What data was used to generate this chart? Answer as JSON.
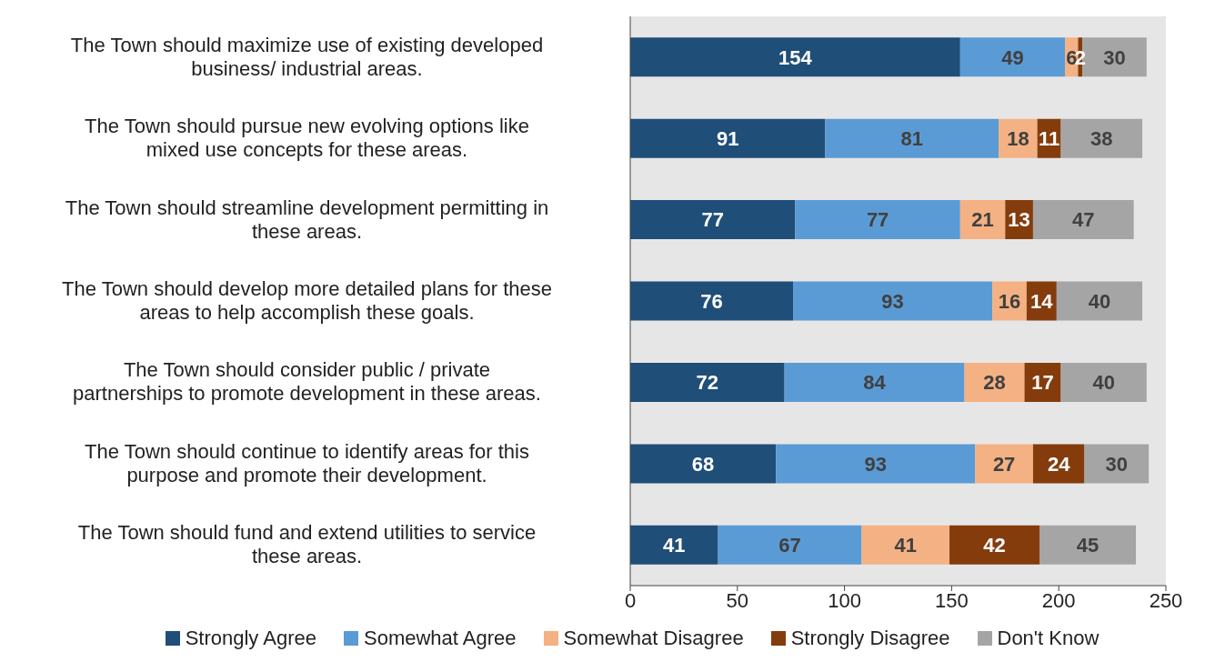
{
  "chart_data": {
    "type": "bar",
    "orientation": "horizontal",
    "stacked": true,
    "data_labels": true,
    "legend": "bottom",
    "grid": false,
    "categories": [
      "The Town should maximize use of existing developed business/ industrial areas.",
      "The Town should pursue new evolving options like mixed use concepts for these areas.",
      "The Town should streamline development permitting in these areas.",
      "The Town should develop more detailed plans for these areas to help accomplish these goals.",
      "The Town should consider public / private partnerships to promote development in these areas.",
      "The Town should continue to identify areas for this purpose and promote their development.",
      "The Town should fund and extend utilities to service these areas."
    ],
    "series": [
      {
        "name": "Strongly Agree",
        "color": "#1f4e79",
        "values": [
          154,
          91,
          77,
          76,
          72,
          68,
          41
        ]
      },
      {
        "name": "Somewhat Agree",
        "color": "#5b9bd5",
        "values": [
          49,
          81,
          77,
          93,
          84,
          93,
          67
        ]
      },
      {
        "name": "Somewhat Disagree",
        "color": "#f4b183",
        "values": [
          6,
          18,
          21,
          16,
          28,
          27,
          41
        ]
      },
      {
        "name": "Strongly Disagree",
        "color": "#843c0c",
        "values": [
          2,
          11,
          13,
          14,
          17,
          24,
          42
        ]
      },
      {
        "name": "Don't Know",
        "color": "#a5a5a5",
        "values": [
          30,
          38,
          47,
          40,
          40,
          30,
          45
        ]
      }
    ],
    "xlim": [
      0,
      250
    ],
    "xticks": [
      0,
      50,
      100,
      150,
      200,
      250
    ]
  }
}
